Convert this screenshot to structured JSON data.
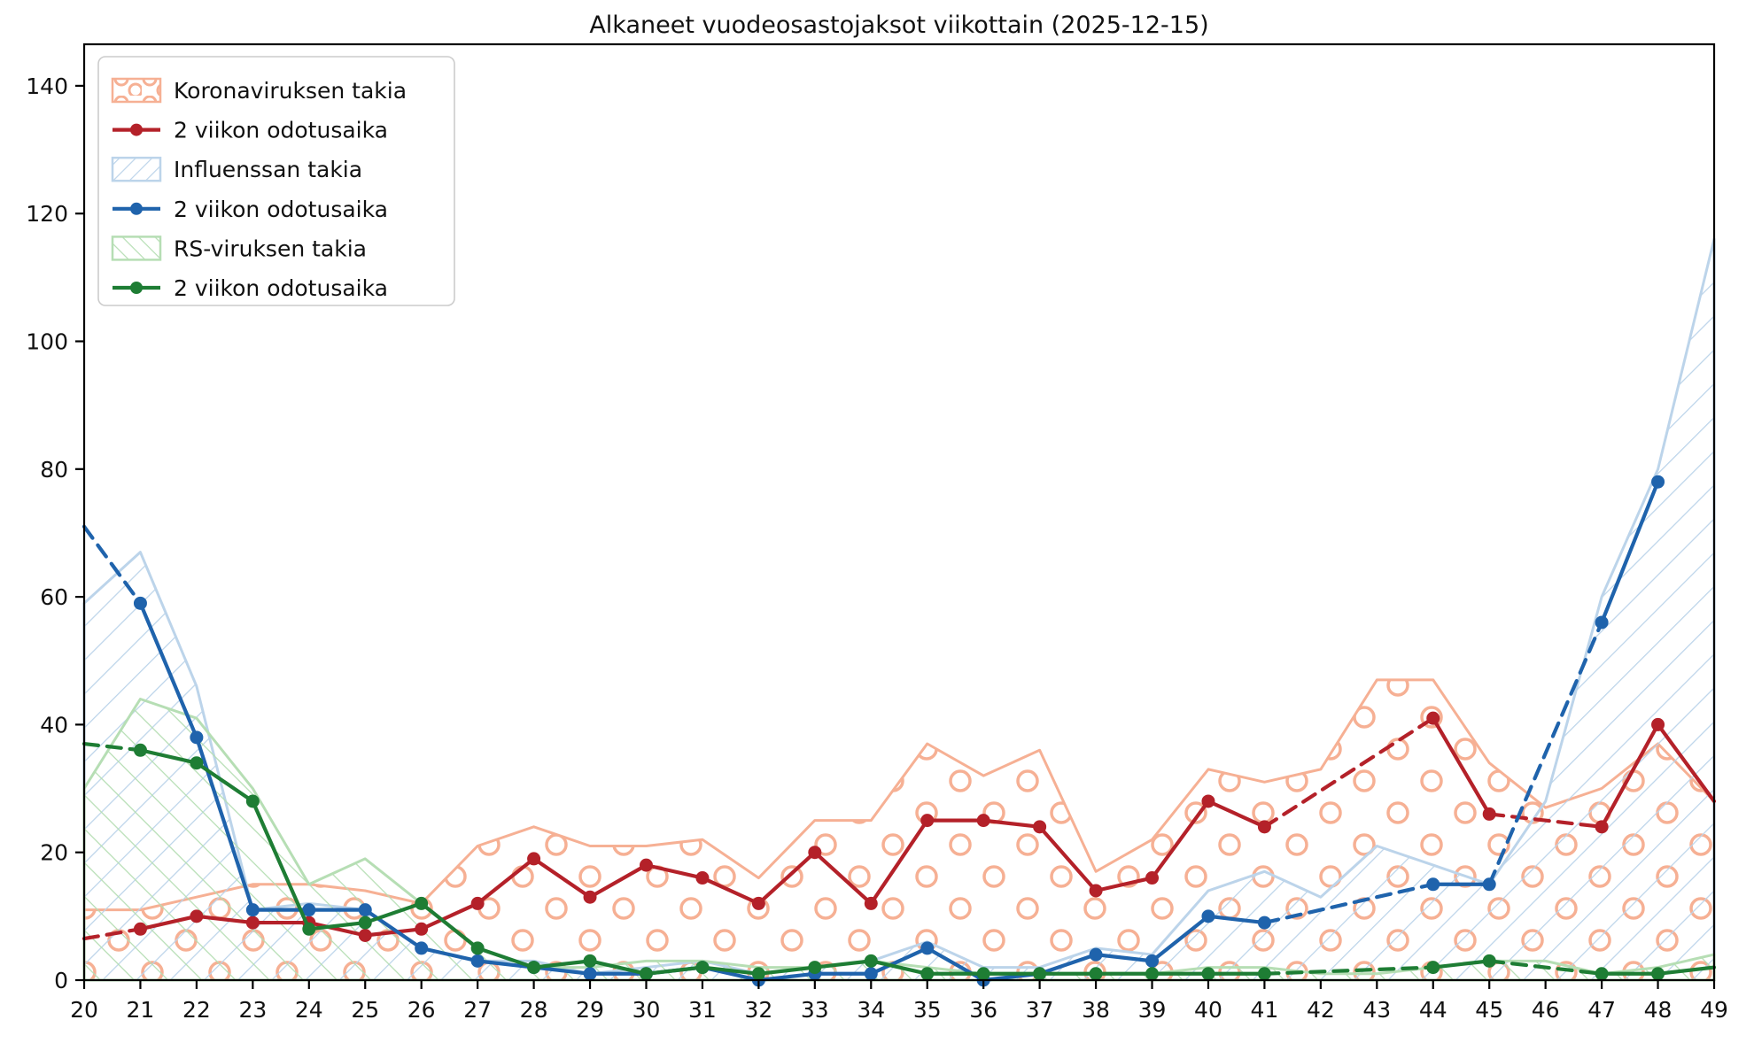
{
  "title": "Alkaneet vuodeosastojaksot viikottain (2025-12-15)",
  "colors": {
    "red": "#b42129",
    "blue": "#1f63ac",
    "green": "#1e7d34",
    "korona_edge": "#f6b094",
    "influenssa_edge": "#bcd4ea",
    "rs_edge": "#b6deb4",
    "axis": "#000000",
    "text": "#111111",
    "legend_border": "#cccccc",
    "background": "#ffffff"
  },
  "axes": {
    "x_ticks": [
      20,
      21,
      22,
      23,
      24,
      25,
      26,
      27,
      28,
      29,
      30,
      31,
      32,
      33,
      34,
      35,
      36,
      37,
      38,
      39,
      40,
      41,
      42,
      43,
      44,
      45,
      46,
      47,
      48,
      49
    ],
    "y_ticks": [
      0,
      20,
      40,
      60,
      80,
      100,
      120,
      140
    ],
    "xlim": [
      20,
      49
    ],
    "ylim": [
      0,
      146.5
    ],
    "grid": false
  },
  "legend": {
    "position": "upper-left",
    "entries": [
      {
        "label": "Koronaviruksen takia",
        "type": "patch",
        "hatch": "o",
        "edge_key": "korona_edge"
      },
      {
        "label": "2 viikon odotusaika",
        "type": "line",
        "color_key": "red"
      },
      {
        "label": "Influenssan takia",
        "type": "patch",
        "hatch": "slash",
        "edge_key": "influenssa_edge"
      },
      {
        "label": "2 viikon odotusaika",
        "type": "line",
        "color_key": "blue"
      },
      {
        "label": "RS-viruksen takia",
        "type": "patch",
        "hatch": "backslash",
        "edge_key": "rs_edge"
      },
      {
        "label": "2 viikon odotusaika",
        "type": "line",
        "color_key": "green"
      }
    ]
  },
  "chart_data": {
    "type": "area",
    "title": "Alkaneet vuodeosastojaksot viikottain (2025-12-15)",
    "xlabel": "",
    "ylabel": "",
    "x": [
      20,
      21,
      22,
      23,
      24,
      25,
      26,
      27,
      28,
      29,
      30,
      31,
      32,
      33,
      34,
      35,
      36,
      37,
      38,
      39,
      40,
      41,
      42,
      43,
      44,
      45,
      46,
      47,
      48,
      49
    ],
    "areas": [
      {
        "name": "Koronaviruksen takia",
        "hatch": "o",
        "edge_key": "korona_edge",
        "values": [
          11,
          11,
          13,
          15,
          15,
          14,
          12,
          21,
          24,
          21,
          21,
          22,
          16,
          25,
          25,
          37,
          32,
          36,
          17,
          22,
          33,
          31,
          33,
          47,
          47,
          34,
          27,
          30,
          37,
          28
        ]
      },
      {
        "name": "Influenssan takia",
        "hatch": "slash",
        "edge_key": "influenssa_edge",
        "values": [
          59,
          67,
          46,
          11,
          12,
          11,
          5,
          3,
          3,
          1,
          2,
          3,
          1,
          2,
          3,
          6,
          2,
          2,
          5,
          4,
          14,
          17,
          13,
          21,
          18,
          15,
          28,
          60,
          80,
          116
        ]
      },
      {
        "name": "RS-viruksen takia",
        "hatch": "backslash",
        "edge_key": "rs_edge",
        "values": [
          30,
          44,
          41,
          30,
          15,
          19,
          12,
          5,
          2,
          2,
          3,
          3,
          2,
          2,
          3,
          2,
          1,
          1,
          1,
          1,
          2,
          2,
          1,
          1,
          2,
          3,
          3,
          1,
          2,
          4
        ]
      }
    ],
    "lines": [
      {
        "name": "2 viikon odotusaika",
        "series": "korona",
        "color_key": "red",
        "points": [
          [
            20,
            6.5
          ],
          [
            21,
            8
          ],
          [
            22,
            10
          ],
          [
            23,
            9
          ],
          [
            24,
            9
          ],
          [
            25,
            7
          ],
          [
            26,
            8
          ],
          [
            27,
            12
          ],
          [
            28,
            19
          ],
          [
            29,
            13
          ],
          [
            30,
            18
          ],
          [
            31,
            16
          ],
          [
            32,
            12
          ],
          [
            33,
            20
          ],
          [
            34,
            12
          ],
          [
            35,
            25
          ],
          [
            36,
            25
          ],
          [
            37,
            24
          ],
          [
            38,
            14
          ],
          [
            39,
            16
          ],
          [
            40,
            28
          ],
          [
            41,
            24
          ],
          [
            44,
            41
          ],
          [
            45,
            26
          ],
          [
            47,
            24
          ],
          [
            48,
            40
          ],
          [
            49,
            28
          ]
        ],
        "dash_spans": [
          [
            20,
            21
          ],
          [
            41,
            44
          ],
          [
            45,
            47
          ]
        ],
        "no_marker_weeks": [
          20,
          49
        ]
      },
      {
        "name": "2 viikon odotusaika",
        "series": "influenssa",
        "color_key": "blue",
        "points": [
          [
            20,
            71
          ],
          [
            21,
            59
          ],
          [
            22,
            38
          ],
          [
            23,
            11
          ],
          [
            24,
            11
          ],
          [
            25,
            11
          ],
          [
            26,
            5
          ],
          [
            27,
            3
          ],
          [
            28,
            2
          ],
          [
            29,
            1
          ],
          [
            30,
            1
          ],
          [
            31,
            2
          ],
          [
            32,
            0
          ],
          [
            33,
            1
          ],
          [
            34,
            1
          ],
          [
            35,
            5
          ],
          [
            36,
            0
          ],
          [
            37,
            1
          ],
          [
            38,
            4
          ],
          [
            39,
            3
          ],
          [
            40,
            10
          ],
          [
            41,
            9
          ],
          [
            44,
            15
          ],
          [
            45,
            15
          ],
          [
            47,
            56
          ],
          [
            48,
            78
          ]
        ],
        "dash_spans": [
          [
            20,
            21
          ],
          [
            41,
            44
          ],
          [
            45,
            47
          ]
        ],
        "no_marker_weeks": [
          20
        ]
      },
      {
        "name": "2 viikon odotusaika",
        "series": "rs",
        "color_key": "green",
        "points": [
          [
            20,
            37
          ],
          [
            21,
            36
          ],
          [
            22,
            34
          ],
          [
            23,
            28
          ],
          [
            24,
            8
          ],
          [
            25,
            9
          ],
          [
            26,
            12
          ],
          [
            27,
            5
          ],
          [
            28,
            2
          ],
          [
            29,
            3
          ],
          [
            30,
            1
          ],
          [
            31,
            2
          ],
          [
            32,
            1
          ],
          [
            33,
            2
          ],
          [
            34,
            3
          ],
          [
            35,
            1
          ],
          [
            36,
            1
          ],
          [
            37,
            1
          ],
          [
            38,
            1
          ],
          [
            39,
            1
          ],
          [
            40,
            1
          ],
          [
            41,
            1
          ],
          [
            44,
            2
          ],
          [
            45,
            3
          ],
          [
            47,
            1
          ],
          [
            48,
            1
          ],
          [
            49,
            2
          ]
        ],
        "dash_spans": [
          [
            20,
            21
          ],
          [
            41,
            44
          ],
          [
            45,
            47
          ]
        ],
        "no_marker_weeks": [
          20,
          49
        ]
      }
    ]
  }
}
